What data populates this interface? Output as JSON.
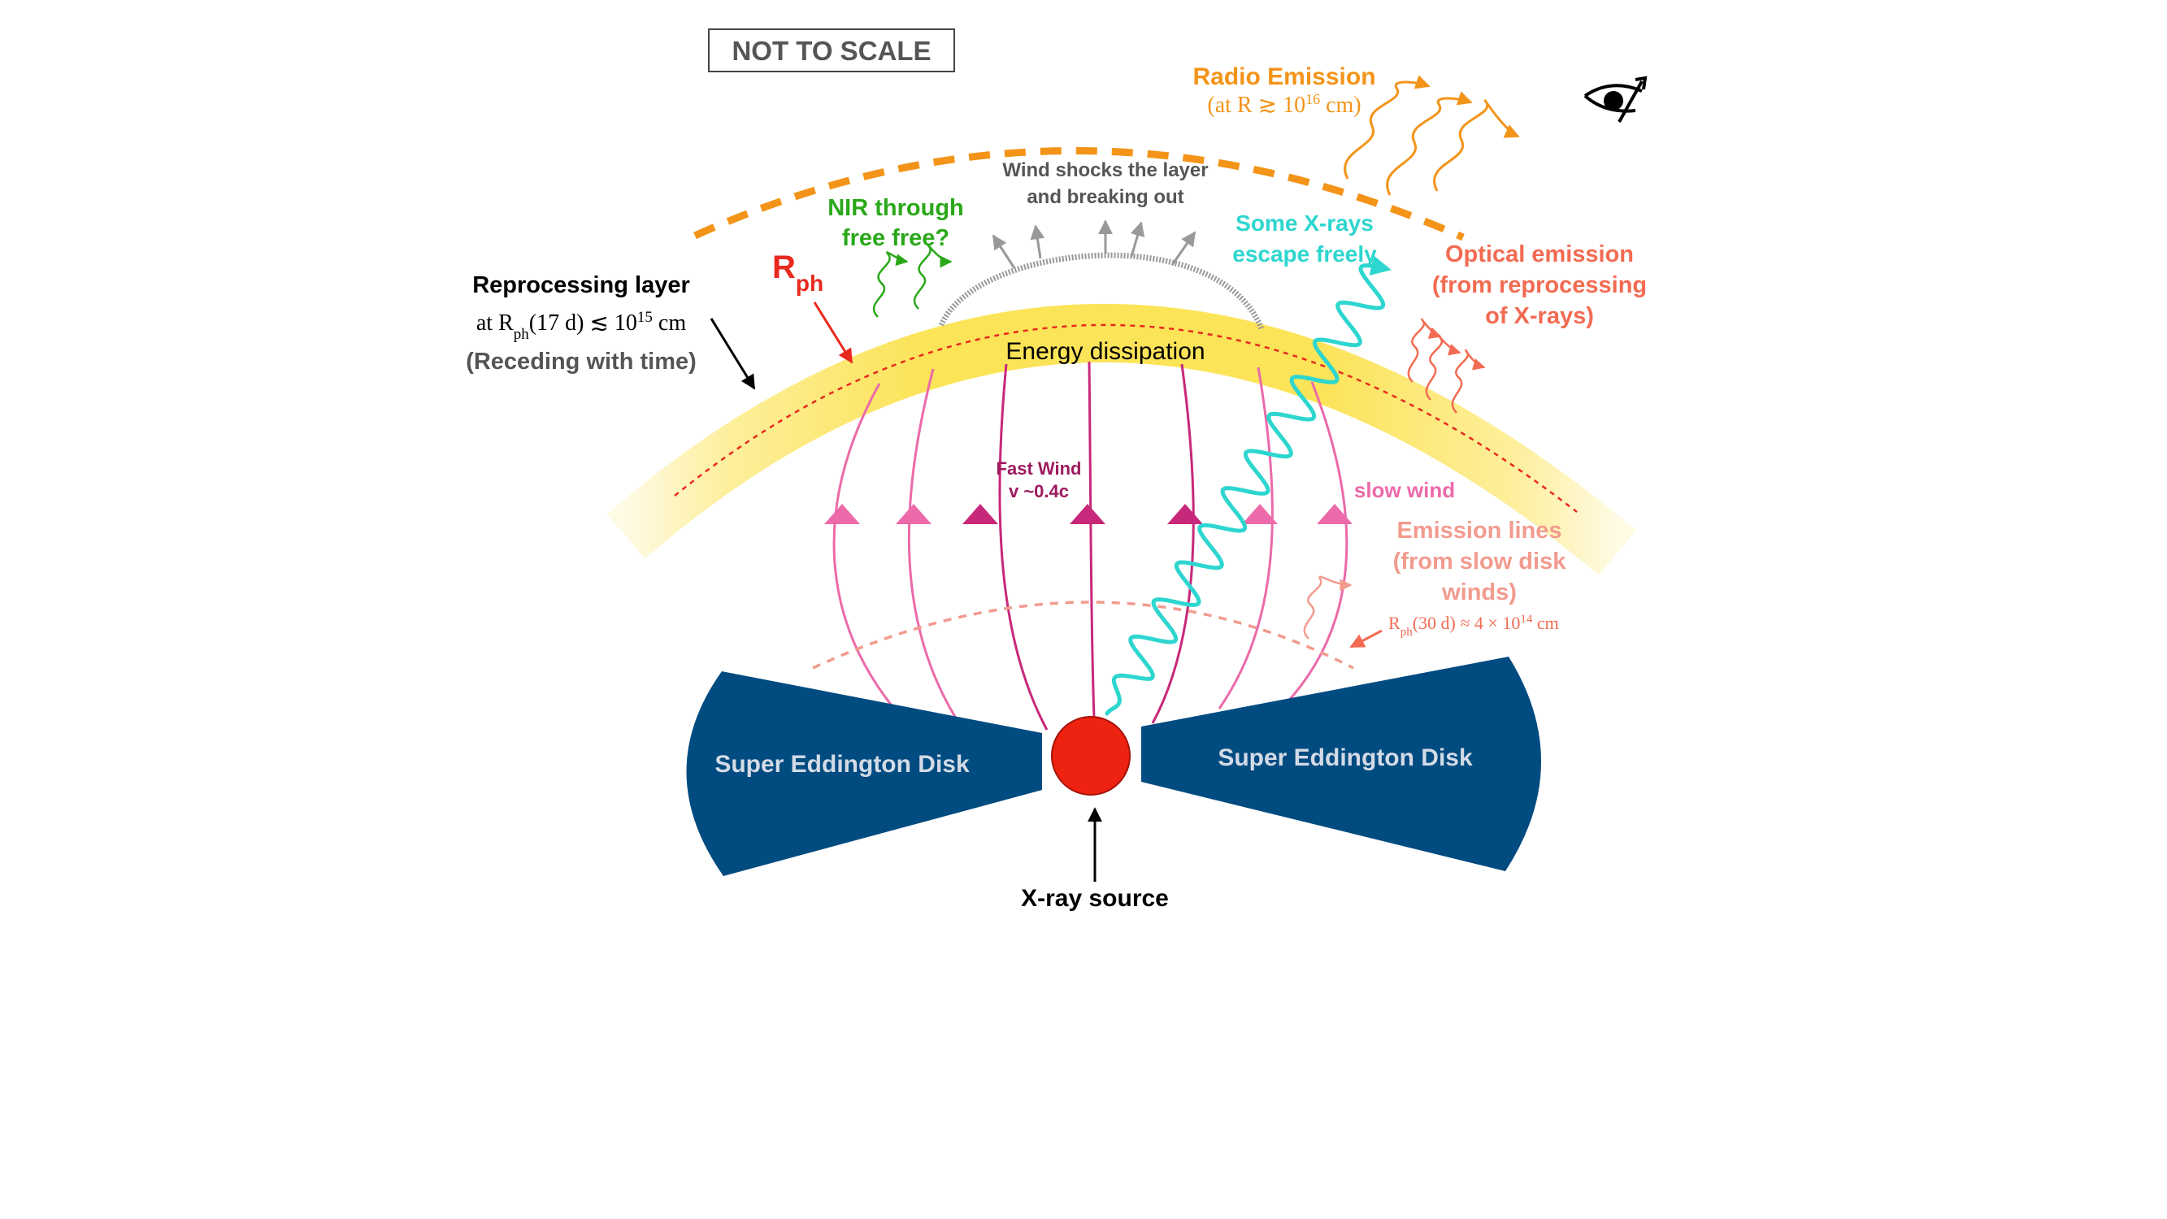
{
  "labels": {
    "not_to_scale": "NOT TO SCALE",
    "radio_title": "Radio Emission",
    "radio_cond_prefix": "(at R ",
    "radio_cond_sym": "≳",
    "radio_cond_base": " 10",
    "radio_cond_exp": "16",
    "radio_cond_suffix": " cm)",
    "wind_shocks_1": "Wind shocks the layer",
    "wind_shocks_2": "and breaking out",
    "nir_1": "NIR through",
    "nir_2": "free free?",
    "xray_escape_1": "Some X-rays",
    "xray_escape_2": "escape freely",
    "optical_1": "Optical emission",
    "optical_2": "(from reprocessing",
    "optical_3": "of X-rays)",
    "rph_main": "R",
    "rph_sub": "ph",
    "repro_title": "Reprocessing layer",
    "repro_prefix": "at R",
    "repro_sub": "ph",
    "repro_mid": "(17 d) ",
    "repro_sym": "≲",
    "repro_base": " 10",
    "repro_exp": "15",
    "repro_suffix": " cm",
    "repro_receding": "(Receding with time)",
    "energy_dissipation": "Energy dissipation",
    "fast_wind_1": "Fast Wind",
    "fast_wind_2": "v ~0.4c",
    "slow_wind": "slow wind",
    "emission_lines_1": "Emission lines",
    "emission_lines_2": "(from slow disk",
    "emission_lines_3": "winds)",
    "rph30_main": "R",
    "rph30_sub": "ph",
    "rph30_mid": "(30 d) ≈ 4 × 10",
    "rph30_exp": "14",
    "rph30_suffix": " cm",
    "disk_left": "Super Eddington Disk",
    "disk_right": "Super Eddington Disk",
    "xray_source": "X-ray source"
  },
  "icons": {
    "observer": "eye-icon"
  },
  "colors": {
    "disk": "#004b80",
    "source": "#ee2211",
    "radio": "#f39419",
    "layer": "#fce24f",
    "fast_wind": "#c8287a",
    "slow_wind": "#ec6aaa",
    "wind_label": "#9c1a5e",
    "xray_wave": "#2dd6cf",
    "nir": "#2aa81a",
    "optical": "#f26b52",
    "emission_lines": "#f29b8e",
    "shock": "#999999",
    "rph": "#e8291e"
  }
}
